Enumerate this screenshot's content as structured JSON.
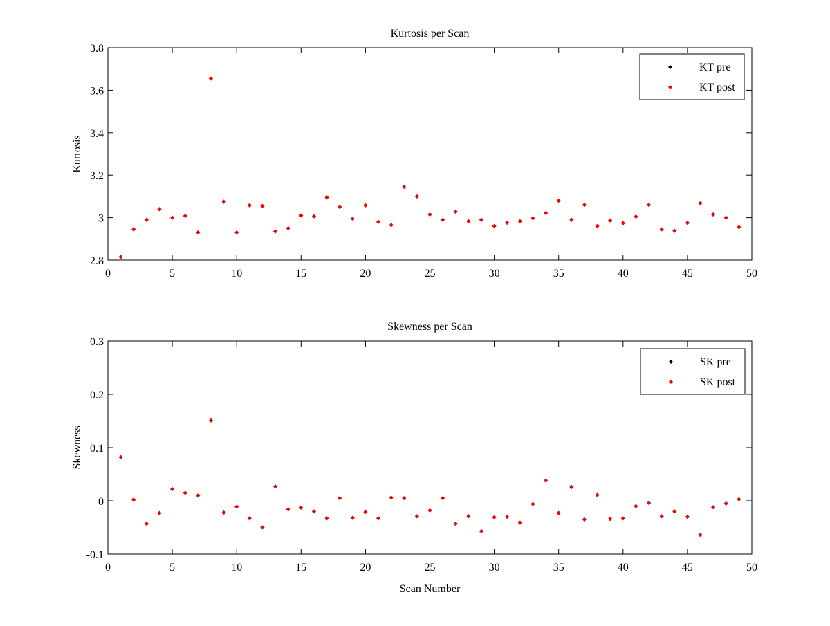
{
  "colors": {
    "pre": "#000000",
    "post": "#ff0000",
    "axes": "#000000",
    "background": "#ffffff"
  },
  "chart_data": [
    {
      "type": "scatter",
      "title": "Kurtosis per Scan",
      "xlabel": "",
      "ylabel": "Kurtosis",
      "xlim": [
        0,
        50
      ],
      "ylim": [
        2.8,
        3.8
      ],
      "xticks": [
        0,
        5,
        10,
        15,
        20,
        25,
        30,
        35,
        40,
        45,
        50
      ],
      "yticks": [
        2.8,
        3,
        3.2,
        3.4,
        3.6,
        3.8
      ],
      "xtick_labels": [
        "0",
        "5",
        "10",
        "15",
        "20",
        "25",
        "30",
        "35",
        "40",
        "45",
        "50"
      ],
      "ytick_labels": [
        "2.8",
        "3",
        "3.2",
        "3.4",
        "3.6",
        "3.8"
      ],
      "grid": false,
      "legend_position": "top-right",
      "legend": [
        "KT pre",
        "KT post"
      ],
      "x": [
        1,
        2,
        3,
        4,
        5,
        6,
        7,
        8,
        9,
        10,
        11,
        12,
        13,
        14,
        15,
        16,
        17,
        18,
        19,
        20,
        21,
        22,
        23,
        24,
        25,
        26,
        27,
        28,
        29,
        30,
        31,
        32,
        33,
        34,
        35,
        36,
        37,
        38,
        39,
        40,
        41,
        42,
        43,
        44,
        45,
        46,
        47,
        48,
        49
      ],
      "series": [
        {
          "name": "KT pre",
          "color": "#000000",
          "values": [
            2.815,
            2.945,
            2.99,
            3.04,
            3.0,
            3.008,
            2.93,
            3.655,
            3.075,
            2.93,
            3.058,
            3.055,
            2.935,
            2.95,
            3.01,
            3.006,
            3.095,
            3.05,
            2.995,
            3.058,
            2.98,
            2.965,
            3.145,
            3.1,
            3.015,
            2.99,
            3.028,
            2.983,
            2.99,
            2.96,
            2.976,
            2.983,
            2.997,
            3.022,
            3.08,
            2.99,
            3.06,
            2.96,
            2.987,
            2.974,
            3.005,
            3.06,
            2.945,
            2.938,
            2.975,
            3.068,
            3.015,
            3.0,
            2.955
          ]
        },
        {
          "name": "KT post",
          "color": "#ff0000",
          "values": [
            2.815,
            2.945,
            2.99,
            3.04,
            3.0,
            3.008,
            2.93,
            3.655,
            3.075,
            2.93,
            3.058,
            3.055,
            2.935,
            2.95,
            3.01,
            3.006,
            3.095,
            3.05,
            2.995,
            3.058,
            2.98,
            2.965,
            3.145,
            3.1,
            3.015,
            2.99,
            3.028,
            2.983,
            2.99,
            2.96,
            2.976,
            2.983,
            2.997,
            3.022,
            3.08,
            2.99,
            3.06,
            2.96,
            2.987,
            2.974,
            3.005,
            3.06,
            2.945,
            2.938,
            2.975,
            3.068,
            3.015,
            3.0,
            2.955
          ]
        }
      ]
    },
    {
      "type": "scatter",
      "title": "Skewness per Scan",
      "xlabel": "Scan Number",
      "ylabel": "Skewness",
      "xlim": [
        0,
        50
      ],
      "ylim": [
        -0.1,
        0.3
      ],
      "xticks": [
        0,
        5,
        10,
        15,
        20,
        25,
        30,
        35,
        40,
        45,
        50
      ],
      "yticks": [
        -0.1,
        0,
        0.1,
        0.2,
        0.3
      ],
      "xtick_labels": [
        "0",
        "5",
        "10",
        "15",
        "20",
        "25",
        "30",
        "35",
        "40",
        "45",
        "50"
      ],
      "ytick_labels": [
        "-0.1",
        "0",
        "0.1",
        "0.2",
        "0.3"
      ],
      "grid": false,
      "legend_position": "top-right",
      "legend": [
        "SK pre",
        "SK post"
      ],
      "x": [
        1,
        2,
        3,
        4,
        5,
        6,
        7,
        8,
        9,
        10,
        11,
        12,
        13,
        14,
        15,
        16,
        17,
        18,
        19,
        20,
        21,
        22,
        23,
        24,
        25,
        26,
        27,
        28,
        29,
        30,
        31,
        32,
        33,
        34,
        35,
        36,
        37,
        38,
        39,
        40,
        41,
        42,
        43,
        44,
        45,
        46,
        47,
        48,
        49
      ],
      "series": [
        {
          "name": "SK pre",
          "color": "#000000",
          "values": [
            0.082,
            0.002,
            -0.043,
            -0.023,
            0.022,
            0.015,
            0.01,
            0.151,
            -0.022,
            -0.011,
            -0.033,
            -0.05,
            0.027,
            -0.016,
            -0.013,
            -0.02,
            -0.033,
            0.005,
            -0.032,
            -0.021,
            -0.033,
            0.006,
            0.005,
            -0.029,
            -0.018,
            0.005,
            -0.043,
            -0.029,
            -0.057,
            -0.031,
            -0.03,
            -0.041,
            -0.006,
            0.038,
            -0.023,
            0.026,
            -0.035,
            0.011,
            -0.034,
            -0.033,
            -0.01,
            -0.004,
            -0.029,
            -0.02,
            -0.03,
            -0.064,
            -0.012,
            -0.005,
            0.003
          ]
        },
        {
          "name": "SK post",
          "color": "#ff0000",
          "values": [
            0.082,
            0.002,
            -0.043,
            -0.023,
            0.022,
            0.015,
            0.01,
            0.151,
            -0.022,
            -0.011,
            -0.033,
            -0.05,
            0.027,
            -0.016,
            -0.013,
            -0.02,
            -0.033,
            0.005,
            -0.032,
            -0.021,
            -0.033,
            0.006,
            0.005,
            -0.029,
            -0.018,
            0.005,
            -0.043,
            -0.029,
            -0.057,
            -0.031,
            -0.03,
            -0.041,
            -0.006,
            0.038,
            -0.023,
            0.026,
            -0.035,
            0.011,
            -0.034,
            -0.033,
            -0.01,
            -0.004,
            -0.029,
            -0.02,
            -0.03,
            -0.064,
            -0.012,
            -0.005,
            0.003
          ]
        }
      ]
    }
  ]
}
